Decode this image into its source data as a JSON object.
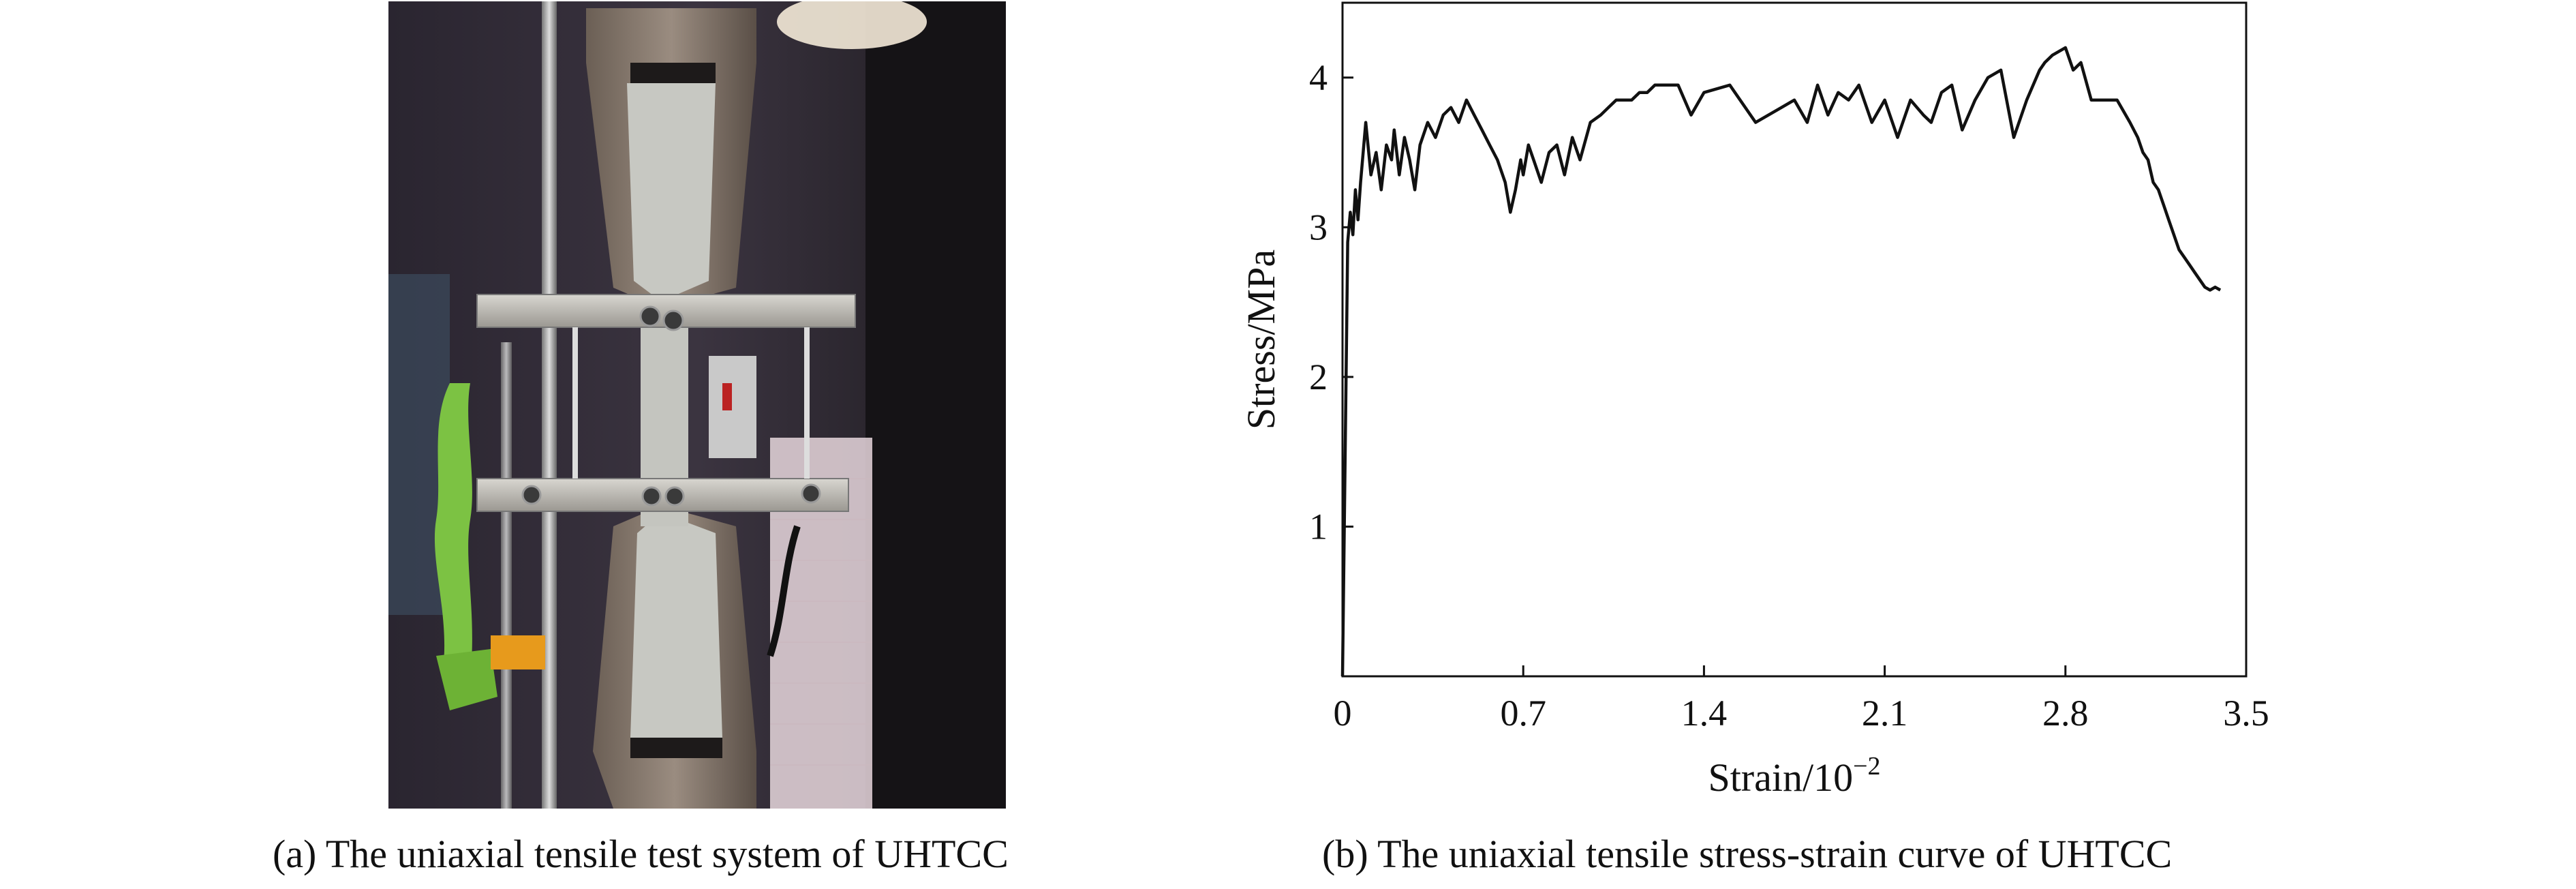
{
  "captions": {
    "a": "(a) The uniaxial tensile test system of UHTCC",
    "b": "(b) The uniaxial tensile stress-strain curve of UHTCC"
  },
  "chart_data": {
    "type": "line",
    "xlabel": "Strain/10",
    "xlabel_sup": "−2",
    "ylabel": "Stress/MPa",
    "xlim": [
      0,
      3.5
    ],
    "ylim": [
      0,
      4.5
    ],
    "xticks": [
      "0",
      "0.7",
      "1.4",
      "2.1",
      "2.8",
      "3.5"
    ],
    "xtick_values": [
      0,
      0.7,
      1.4,
      2.1,
      2.8,
      3.5
    ],
    "yticks": [
      "1",
      "2",
      "3",
      "4"
    ],
    "ytick_values": [
      1,
      2,
      3,
      4
    ],
    "grid": false,
    "line_color": "#111111",
    "series": [
      {
        "x": [
          0.0,
          0.02,
          0.03,
          0.04,
          0.05,
          0.06,
          0.07,
          0.08,
          0.09,
          0.11,
          0.13,
          0.15,
          0.17,
          0.19,
          0.2,
          0.22,
          0.24,
          0.26,
          0.28,
          0.3,
          0.33,
          0.36,
          0.39,
          0.42,
          0.45,
          0.48,
          0.51,
          0.54,
          0.57,
          0.6,
          0.63,
          0.65,
          0.67,
          0.69,
          0.7,
          0.72,
          0.74,
          0.77,
          0.8,
          0.83,
          0.86,
          0.89,
          0.92,
          0.96,
          1.0,
          1.03,
          1.06,
          1.09,
          1.12,
          1.15,
          1.18,
          1.21,
          1.25,
          1.3,
          1.35,
          1.4,
          1.5,
          1.6,
          1.7,
          1.75,
          1.8,
          1.84,
          1.88,
          1.92,
          1.96,
          2.0,
          2.05,
          2.1,
          2.15,
          2.2,
          2.25,
          2.28,
          2.32,
          2.36,
          2.4,
          2.45,
          2.5,
          2.55,
          2.6,
          2.65,
          2.7,
          2.72,
          2.75,
          2.8,
          2.83,
          2.86,
          2.9,
          2.95,
          3.0,
          3.05,
          3.08,
          3.1,
          3.12,
          3.14,
          3.16,
          3.18,
          3.2,
          3.22,
          3.24,
          3.26,
          3.28,
          3.3,
          3.32,
          3.34,
          3.36,
          3.38,
          3.4
        ],
        "y": [
          0.0,
          2.9,
          3.1,
          2.95,
          3.25,
          3.05,
          3.3,
          3.5,
          3.7,
          3.35,
          3.5,
          3.25,
          3.55,
          3.45,
          3.65,
          3.35,
          3.6,
          3.45,
          3.25,
          3.55,
          3.7,
          3.6,
          3.75,
          3.8,
          3.7,
          3.85,
          3.75,
          3.65,
          3.55,
          3.45,
          3.3,
          3.1,
          3.25,
          3.45,
          3.35,
          3.55,
          3.45,
          3.3,
          3.5,
          3.55,
          3.35,
          3.6,
          3.45,
          3.7,
          3.75,
          3.8,
          3.85,
          3.85,
          3.85,
          3.9,
          3.9,
          3.95,
          3.95,
          3.95,
          3.75,
          3.9,
          3.95,
          3.7,
          3.8,
          3.85,
          3.7,
          3.95,
          3.75,
          3.9,
          3.85,
          3.95,
          3.7,
          3.85,
          3.6,
          3.85,
          3.75,
          3.7,
          3.9,
          3.95,
          3.65,
          3.85,
          4.0,
          4.05,
          3.6,
          3.85,
          4.05,
          4.1,
          4.15,
          4.2,
          4.05,
          4.1,
          3.85,
          3.85,
          3.85,
          3.7,
          3.6,
          3.5,
          3.45,
          3.3,
          3.25,
          3.15,
          3.05,
          2.95,
          2.85,
          2.8,
          2.75,
          2.7,
          2.65,
          2.6,
          2.58,
          2.6,
          2.58
        ]
      }
    ]
  }
}
